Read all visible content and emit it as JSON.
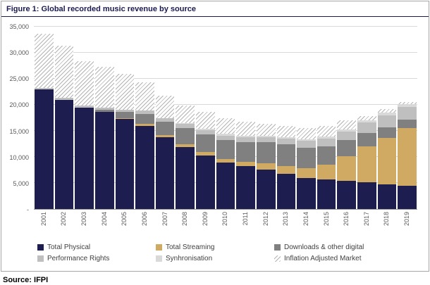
{
  "title": "Figure 1: Global recorded music revenue by source",
  "source": "Source: IFPI",
  "chart_data": {
    "type": "bar",
    "stacked": true,
    "title": "Figure 1: Global recorded music revenue by source",
    "xlabel": "",
    "ylabel": "",
    "grid": "horizontal",
    "legend_position": "bottom",
    "ylim": [
      0,
      35000
    ],
    "yticks": [
      {
        "value": 0,
        "label": "-"
      },
      {
        "value": 5000,
        "label": "5,000"
      },
      {
        "value": 10000,
        "label": "10,000"
      },
      {
        "value": 15000,
        "label": "15,000"
      },
      {
        "value": 20000,
        "label": "20,000"
      },
      {
        "value": 25000,
        "label": "25,000"
      },
      {
        "value": 30000,
        "label": "30,000"
      },
      {
        "value": 35000,
        "label": "35,000"
      }
    ],
    "categories": [
      "2001",
      "2002",
      "2003",
      "2004",
      "2005",
      "2006",
      "2007",
      "2008",
      "2009",
      "2010",
      "2011",
      "2012",
      "2013",
      "2014",
      "2015",
      "2016",
      "2017",
      "2018",
      "2019"
    ],
    "series": [
      {
        "key": "total-physical",
        "name": "Total Physical",
        "color": "#1d1d4f",
        "values": [
          23000,
          21000,
          19400,
          18600,
          17300,
          16000,
          13800,
          11900,
          10300,
          8900,
          8200,
          7600,
          6800,
          6000,
          5700,
          5400,
          5200,
          4700,
          4400
        ]
      },
      {
        "key": "total-streaming",
        "name": "Total Streaming",
        "color": "#d0a963",
        "values": [
          0,
          0,
          0,
          0,
          200,
          300,
          400,
          600,
          600,
          700,
          900,
          1200,
          1500,
          1900,
          2800,
          4700,
          6800,
          9000,
          11200
        ]
      },
      {
        "key": "downloads-other-digital",
        "name": "Downloads & other digital",
        "color": "#808080",
        "values": [
          0,
          0,
          100,
          400,
          1100,
          2000,
          2600,
          3000,
          3400,
          3600,
          3800,
          4000,
          4100,
          3900,
          3500,
          3100,
          2600,
          2000,
          1500
        ]
      },
      {
        "key": "performance-rights",
        "name": "Performance Rights",
        "color": "#bfbfbf",
        "values": [
          300,
          300,
          400,
          400,
          500,
          600,
          700,
          800,
          800,
          900,
          900,
          1000,
          1100,
          1300,
          1500,
          1700,
          2000,
          2300,
          2500
        ]
      },
      {
        "key": "synhronisation",
        "name": "Synhronisation",
        "color": "#d9d9d9",
        "values": [
          0,
          0,
          0,
          0,
          0,
          0,
          0,
          200,
          300,
          300,
          300,
          300,
          300,
          300,
          400,
          400,
          400,
          500,
          500
        ]
      }
    ],
    "inflation_adjusted_market": {
      "key": "inflation-adjusted-market",
      "name": "Inflation Adjusted Market",
      "pattern": "hatch",
      "values": [
        33700,
        31300,
        28400,
        27300,
        25900,
        24300,
        21800,
        19900,
        18600,
        17400,
        16700,
        16300,
        16000,
        15500,
        16000,
        17000,
        17900,
        19200,
        20600
      ]
    },
    "legend": [
      {
        "key": "total-physical",
        "label": "Total Physical",
        "color": "#1d1d4f"
      },
      {
        "key": "total-streaming",
        "label": "Total Streaming",
        "color": "#d0a963"
      },
      {
        "key": "downloads-other-digital",
        "label": "Downloads & other digital",
        "color": "#808080"
      },
      {
        "key": "performance-rights",
        "label": "Performance Rights",
        "color": "#bfbfbf"
      },
      {
        "key": "synhronisation",
        "label": "Synhronisation",
        "color": "#d9d9d9"
      },
      {
        "key": "inflation-adjusted-market",
        "label": "Inflation Adjusted Market",
        "pattern": "hatch"
      }
    ]
  }
}
